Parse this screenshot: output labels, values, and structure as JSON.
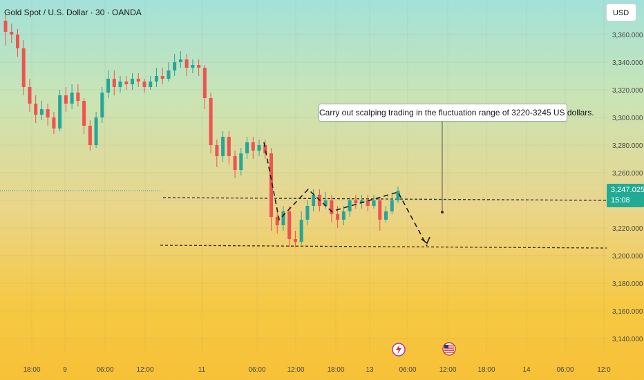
{
  "header": {
    "title": "Gold Spot / U.S. Dollar · 30 · OANDA",
    "currency": "USD"
  },
  "price_tag": {
    "price": "3,247.025",
    "countdown": "15:08"
  },
  "annotation": {
    "text": "Carry out scalping trading in the fluctuation range of 3220-3245 US dollars."
  },
  "colors": {
    "up": "#26a69a",
    "down": "#ef5350",
    "tag": "#22ab94"
  },
  "icons": [
    "lightning-event-icon",
    "us-flag-event-icon"
  ],
  "chart_data": {
    "type": "candlestick",
    "title": "Gold Spot / U.S. Dollar · 30 · OANDA",
    "ylim": [
      3130,
      3372
    ],
    "y_ticks": [
      "3,140.000",
      "3,160.000",
      "3,180.000",
      "3,200.000",
      "3,220.000",
      "3,240.000",
      "3,260.000",
      "3,280.000",
      "3,300.000",
      "3,320.000",
      "3,340.000",
      "3,360.000"
    ],
    "x_ticks": [
      "18:00",
      "9",
      "06:00",
      "12:00",
      "11",
      "06:00",
      "12:00",
      "18:00",
      "13",
      "06:00",
      "12:00",
      "18:00",
      "14",
      "06:00",
      "12:0"
    ],
    "lines": {
      "resistance": 3245,
      "support": 3208
    },
    "projection": [
      3282,
      3226,
      3248,
      3232,
      3246,
      3207
    ],
    "candles": [
      [
        3370,
        3362,
        3374,
        3352
      ],
      [
        3362,
        3360,
        3368,
        3354
      ],
      [
        3360,
        3350,
        3364,
        3344
      ],
      [
        3350,
        3322,
        3356,
        3316
      ],
      [
        3322,
        3310,
        3328,
        3304
      ],
      [
        3310,
        3302,
        3316,
        3296
      ],
      [
        3302,
        3306,
        3312,
        3298
      ],
      [
        3306,
        3300,
        3310,
        3294
      ],
      [
        3300,
        3292,
        3304,
        3288
      ],
      [
        3292,
        3316,
        3320,
        3290
      ],
      [
        3316,
        3310,
        3322,
        3304
      ],
      [
        3310,
        3318,
        3324,
        3306
      ],
      [
        3318,
        3312,
        3324,
        3308
      ],
      [
        3312,
        3294,
        3314,
        3288
      ],
      [
        3294,
        3280,
        3298,
        3276
      ],
      [
        3280,
        3300,
        3304,
        3278
      ],
      [
        3300,
        3318,
        3322,
        3296
      ],
      [
        3318,
        3328,
        3334,
        3314
      ],
      [
        3328,
        3322,
        3334,
        3316
      ],
      [
        3322,
        3326,
        3330,
        3318
      ],
      [
        3326,
        3324,
        3330,
        3320
      ],
      [
        3324,
        3328,
        3332,
        3320
      ],
      [
        3328,
        3326,
        3332,
        3322
      ],
      [
        3326,
        3322,
        3328,
        3318
      ],
      [
        3322,
        3326,
        3330,
        3320
      ],
      [
        3326,
        3330,
        3336,
        3322
      ],
      [
        3330,
        3328,
        3336,
        3324
      ],
      [
        3328,
        3334,
        3340,
        3326
      ],
      [
        3334,
        3340,
        3346,
        3330
      ],
      [
        3340,
        3342,
        3348,
        3336
      ],
      [
        3342,
        3336,
        3346,
        3330
      ],
      [
        3336,
        3338,
        3342,
        3332
      ],
      [
        3338,
        3336,
        3342,
        3330
      ],
      [
        3336,
        3314,
        3338,
        3306
      ],
      [
        3314,
        3280,
        3318,
        3274
      ],
      [
        3280,
        3272,
        3284,
        3264
      ],
      [
        3272,
        3286,
        3290,
        3268
      ],
      [
        3286,
        3272,
        3290,
        3266
      ],
      [
        3272,
        3262,
        3276,
        3256
      ],
      [
        3262,
        3274,
        3278,
        3258
      ],
      [
        3274,
        3282,
        3286,
        3270
      ],
      [
        3282,
        3276,
        3286,
        3270
      ],
      [
        3276,
        3280,
        3284,
        3272
      ],
      [
        3280,
        3274,
        3284,
        3270
      ],
      [
        3274,
        3228,
        3278,
        3218
      ],
      [
        3228,
        3222,
        3234,
        3216
      ],
      [
        3222,
        3232,
        3236,
        3218
      ],
      [
        3232,
        3212,
        3236,
        3206
      ],
      [
        3212,
        3210,
        3218,
        3206
      ],
      [
        3210,
        3226,
        3232,
        3208
      ],
      [
        3226,
        3236,
        3240,
        3222
      ],
      [
        3236,
        3244,
        3248,
        3232
      ],
      [
        3244,
        3236,
        3248,
        3232
      ],
      [
        3236,
        3240,
        3246,
        3234
      ],
      [
        3240,
        3230,
        3244,
        3224
      ],
      [
        3230,
        3226,
        3236,
        3220
      ],
      [
        3226,
        3232,
        3236,
        3222
      ],
      [
        3232,
        3240,
        3242,
        3228
      ],
      [
        3240,
        3238,
        3244,
        3234
      ],
      [
        3238,
        3240,
        3244,
        3234
      ],
      [
        3240,
        3236,
        3244,
        3232
      ],
      [
        3236,
        3240,
        3244,
        3234
      ],
      [
        3240,
        3226,
        3242,
        3218
      ],
      [
        3226,
        3232,
        3236,
        3224
      ],
      [
        3232,
        3240,
        3244,
        3230
      ],
      [
        3240,
        3247,
        3250,
        3238
      ]
    ]
  }
}
